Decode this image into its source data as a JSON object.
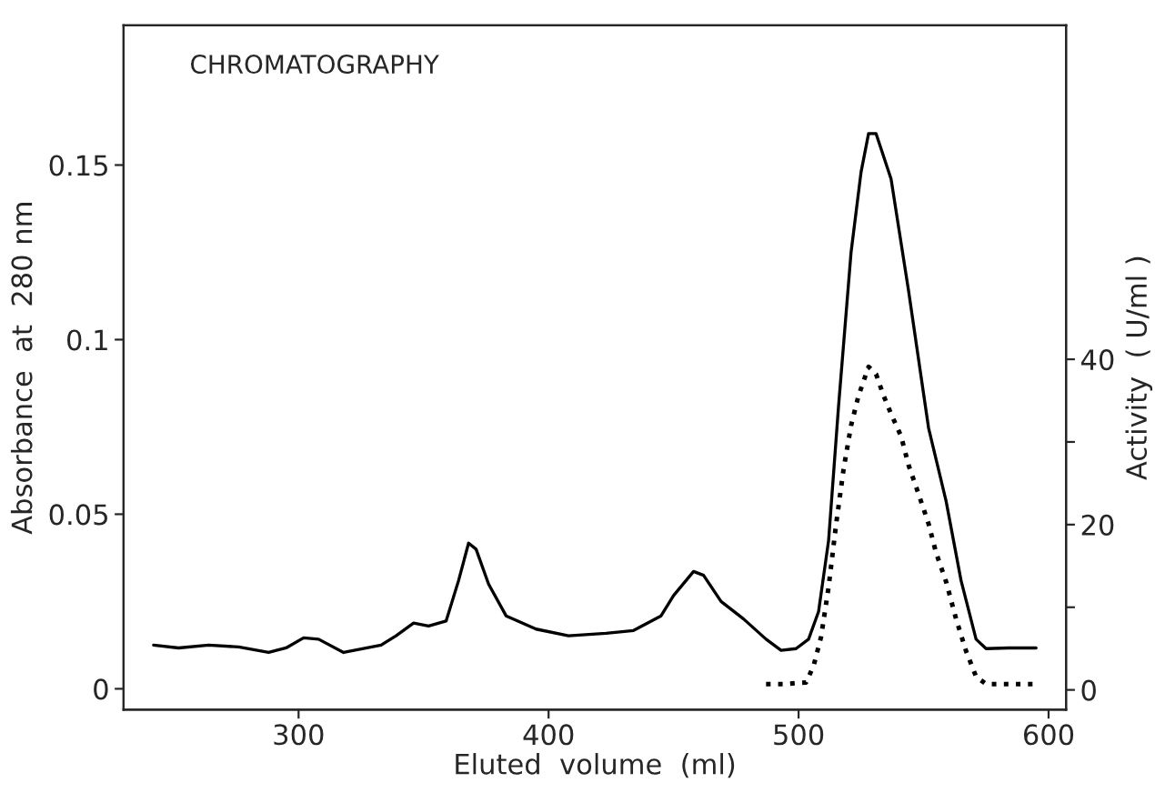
{
  "chart_data": {
    "type": "line",
    "title": "CHROMATOGRAPHY",
    "xlabel": "Eluted  volume  (ml)",
    "ylabel": "Absorbance  at  280 nm",
    "y2label": "Activity  ( U/ml )",
    "xlim": [
      230,
      607
    ],
    "xticks": [
      300,
      400,
      500,
      600
    ],
    "ylim": [
      -0.006,
      0.19
    ],
    "yticks": [
      {
        "value": 0,
        "label": "0"
      },
      0.05,
      0.1,
      0.15
    ],
    "y2lim": [
      -2.4,
      80.4
    ],
    "y2ticks": [
      0,
      {
        "value": 10,
        "label": null
      },
      20,
      {
        "value": 30,
        "label": null
      },
      40
    ],
    "grid": false,
    "legend": false,
    "series": [
      {
        "color": "#000000",
        "line_style": "solid",
        "x": [
          242,
          252,
          264,
          276,
          288,
          295,
          302,
          308,
          318,
          333,
          339,
          346,
          352,
          359,
          364,
          368,
          371,
          376,
          383,
          395,
          408,
          423,
          434,
          445,
          450,
          458,
          462,
          469,
          478,
          487,
          493,
          499,
          504,
          508,
          512,
          516,
          521,
          525,
          528,
          531,
          537,
          544,
          552,
          559,
          565,
          571,
          575,
          584,
          595
        ],
        "values": [
          0.0125,
          0.0117,
          0.0125,
          0.012,
          0.0104,
          0.0117,
          0.0146,
          0.0142,
          0.0104,
          0.0125,
          0.0152,
          0.0188,
          0.018,
          0.0194,
          0.031,
          0.0417,
          0.04,
          0.03,
          0.0209,
          0.0171,
          0.0152,
          0.0159,
          0.0167,
          0.0209,
          0.0267,
          0.0336,
          0.0325,
          0.025,
          0.02,
          0.0142,
          0.011,
          0.0115,
          0.0142,
          0.0221,
          0.0424,
          0.081,
          0.125,
          0.148,
          0.159,
          0.159,
          0.146,
          0.114,
          0.0747,
          0.0538,
          0.031,
          0.0142,
          0.0115,
          0.0117,
          0.0117
        ]
      },
      {
        "color": "#000000",
        "line_style": "dotted",
        "axis": "y2",
        "x": [
          487,
          494,
          503,
          506,
          509,
          512,
          515,
          518,
          521,
          524,
          528,
          531,
          534,
          537,
          541,
          544,
          548,
          552,
          555,
          559,
          563,
          567,
          571,
          575,
          584,
          596
        ],
        "values": [
          0.7,
          0.7,
          0.9,
          2.9,
          6.4,
          12.4,
          20,
          26.7,
          32,
          35.6,
          39.1,
          38.2,
          35.6,
          33.4,
          30.7,
          27.2,
          23.7,
          20.1,
          16.6,
          13.1,
          8.6,
          4.7,
          1.6,
          0.7,
          0.7,
          0.7
        ]
      }
    ]
  }
}
